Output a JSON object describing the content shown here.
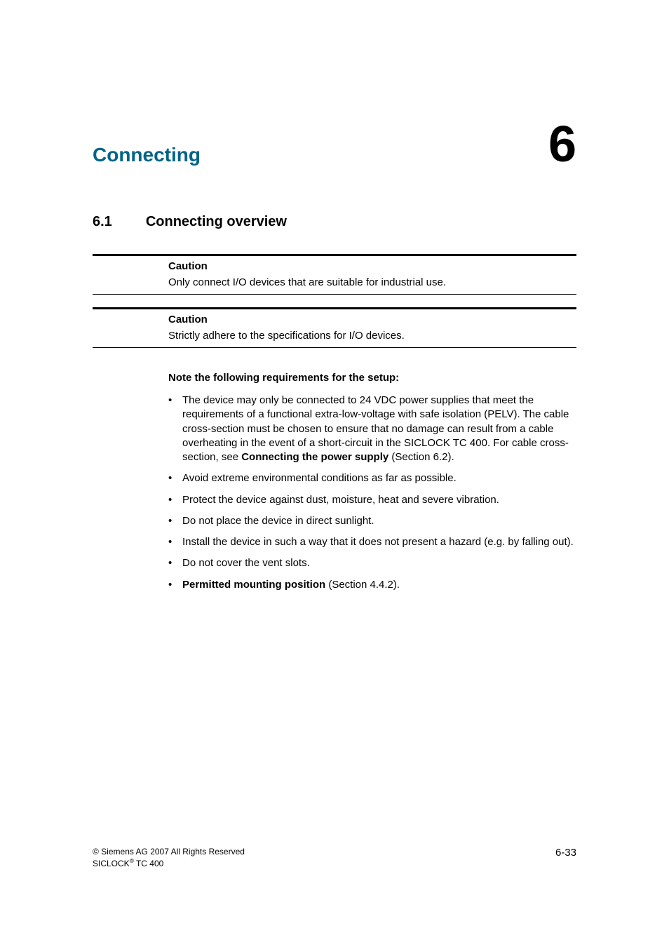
{
  "chapter": {
    "title": "Connecting",
    "number": "6",
    "title_color": "#006487"
  },
  "section": {
    "number": "6.1",
    "title": "Connecting overview"
  },
  "cautions": [
    {
      "heading": "Caution",
      "text": "Only connect I/O devices that are suitable for industrial use."
    },
    {
      "heading": "Caution",
      "text": "Strictly adhere to the specifications for I/O devices."
    }
  ],
  "note_heading": "Note the following requirements for the setup:",
  "bullets": {
    "b1_a": "The device may only be connected to  24 VDC power supplies that meet the requirements of a functional extra-low-voltage with safe isolation (PELV). The cable cross-section must be chosen to ensure that no damage can result from a cable overheating in the event of a short-circuit in the SICLOCK TC 400. For cable cross-section, see ",
    "b1_bold": "Connecting the power supply",
    "b1_b": " (Section 6.2).",
    "b2": "Avoid extreme environmental conditions as far as possible.",
    "b3": "Protect the device against dust, moisture, heat and severe vibration.",
    "b4": "Do not place the device in direct sunlight.",
    "b5": "Install the device in such a way that it does not present a hazard (e.g. by falling out).",
    "b6": "Do not cover the vent slots.",
    "b7_bold": "Permitted mounting position",
    "b7_b": " (Section 4.4.2)."
  },
  "footer": {
    "copyright_prefix": "©",
    "copyright": " Siemens AG 2007 All Rights Reserved",
    "product_a": "SICLOCK",
    "product_sup": "®",
    "product_b": " TC 400",
    "page_num": "6-33"
  }
}
